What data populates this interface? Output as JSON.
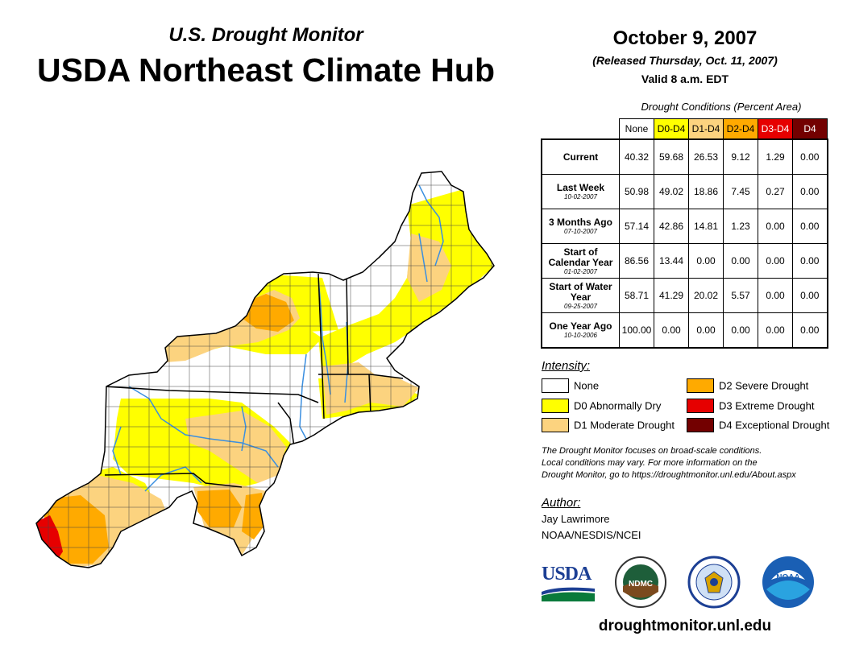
{
  "header": {
    "subtitle": "U.S. Drought Monitor",
    "title": "USDA Northeast Climate Hub",
    "date": "October 9, 2007",
    "released": "(Released Thursday, Oct. 11, 2007)",
    "valid": "Valid 8 a.m. EDT"
  },
  "table": {
    "caption": "Drought Conditions (Percent Area)",
    "columns": [
      {
        "label": "None",
        "color": "#ffffff",
        "text_color": "#000000"
      },
      {
        "label": "D0-D4",
        "color": "#ffff00",
        "text_color": "#000000"
      },
      {
        "label": "D1-D4",
        "color": "#fcd37f",
        "text_color": "#000000"
      },
      {
        "label": "D2-D4",
        "color": "#ffaa00",
        "text_color": "#000000"
      },
      {
        "label": "D3-D4",
        "color": "#e60000",
        "text_color": "#ffffff"
      },
      {
        "label": "D4",
        "color": "#730000",
        "text_color": "#ffffff"
      }
    ],
    "rows": [
      {
        "label": "Current",
        "date": "",
        "values": [
          "40.32",
          "59.68",
          "26.53",
          "9.12",
          "1.29",
          "0.00"
        ]
      },
      {
        "label": "Last Week",
        "date": "10-02-2007",
        "values": [
          "50.98",
          "49.02",
          "18.86",
          "7.45",
          "0.27",
          "0.00"
        ]
      },
      {
        "label": "3 Months Ago",
        "date": "07-10-2007",
        "values": [
          "57.14",
          "42.86",
          "14.81",
          "1.23",
          "0.00",
          "0.00"
        ]
      },
      {
        "label": "Start of Calendar Year",
        "date": "01-02-2007",
        "values": [
          "86.56",
          "13.44",
          "0.00",
          "0.00",
          "0.00",
          "0.00"
        ]
      },
      {
        "label": "Start of Water Year",
        "date": "09-25-2007",
        "values": [
          "58.71",
          "41.29",
          "20.02",
          "5.57",
          "0.00",
          "0.00"
        ]
      },
      {
        "label": "One Year Ago",
        "date": "10-10-2006",
        "values": [
          "100.00",
          "0.00",
          "0.00",
          "0.00",
          "0.00",
          "0.00"
        ]
      }
    ]
  },
  "legend": {
    "title": "Intensity:",
    "items": [
      {
        "label": "None",
        "color": "#ffffff"
      },
      {
        "label": "D0 Abnormally Dry",
        "color": "#ffff00"
      },
      {
        "label": "D1 Moderate Drought",
        "color": "#fcd37f"
      },
      {
        "label": "D2 Severe Drought",
        "color": "#ffaa00"
      },
      {
        "label": "D3 Extreme Drought",
        "color": "#e60000"
      },
      {
        "label": "D4 Exceptional Drought",
        "color": "#730000"
      }
    ]
  },
  "note": {
    "line1": "The Drought Monitor focuses on broad-scale conditions.",
    "line2": "Local conditions may vary. For more information on the",
    "line3": "Drought Monitor, go to https://droughtmonitor.unl.edu/About.aspx"
  },
  "author": {
    "title": "Author:",
    "name": "Jay Lawrimore",
    "org": "NOAA/NESDIS/NCEI"
  },
  "logos": {
    "usda": "USDA",
    "ndmc": "NDMC",
    "noaa": "NOAA"
  },
  "footer": {
    "url": "droughtmonitor.unl.edu"
  }
}
